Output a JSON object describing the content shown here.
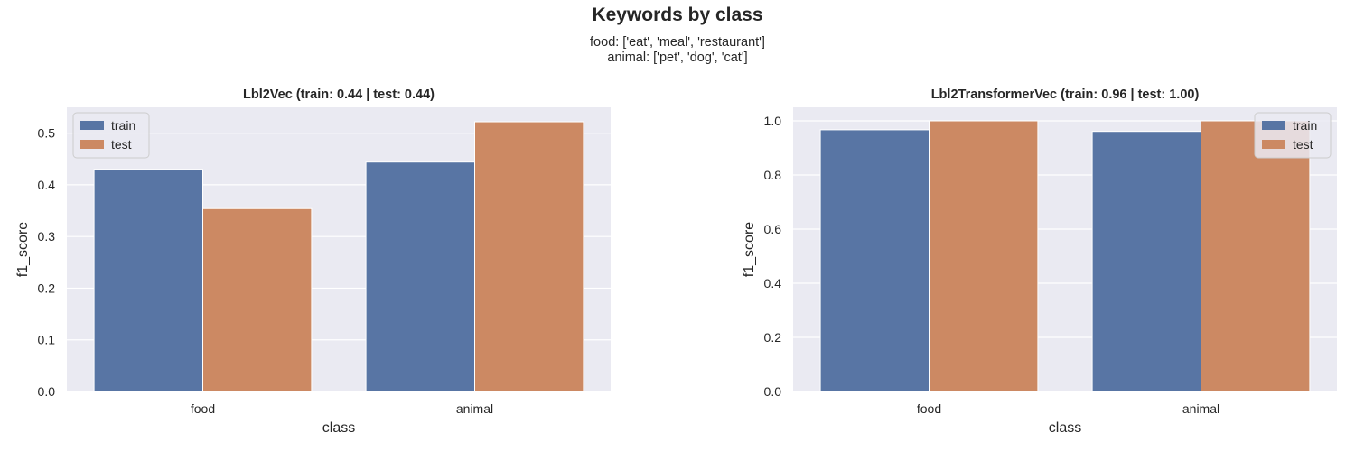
{
  "figure": {
    "title": "Keywords by class",
    "subtitle_lines": [
      "food: ['eat', 'meal', 'restaurant']",
      "animal: ['pet', 'dog', 'cat']"
    ]
  },
  "chart_data": [
    {
      "type": "bar",
      "title": "Lbl2Vec (train: 0.44 | test: 0.44)",
      "xlabel": "class",
      "ylabel": "f1_score",
      "categories": [
        "food",
        "animal"
      ],
      "series": [
        {
          "name": "train",
          "values": [
            0.43,
            0.444
          ],
          "color": "#5875a4"
        },
        {
          "name": "test",
          "values": [
            0.354,
            0.522
          ],
          "color": "#cc8963"
        }
      ],
      "ylim": [
        0,
        0.55
      ],
      "yticks": [
        0.0,
        0.1,
        0.2,
        0.3,
        0.4,
        0.5
      ],
      "ytick_labels": [
        "0.0",
        "0.1",
        "0.2",
        "0.3",
        "0.4",
        "0.5"
      ],
      "legend": "upper-left",
      "grid": true,
      "background": "#eaeaf2"
    },
    {
      "type": "bar",
      "title": "Lbl2TransformerVec (train: 0.96 | test: 1.00)",
      "xlabel": "class",
      "ylabel": "f1_score",
      "categories": [
        "food",
        "animal"
      ],
      "series": [
        {
          "name": "train",
          "values": [
            0.967,
            0.961
          ],
          "color": "#5875a4"
        },
        {
          "name": "test",
          "values": [
            1.0,
            1.0
          ],
          "color": "#cc8963"
        }
      ],
      "ylim": [
        0,
        1.05
      ],
      "yticks": [
        0.0,
        0.2,
        0.4,
        0.6,
        0.8,
        1.0
      ],
      "ytick_labels": [
        "0.0",
        "0.2",
        "0.4",
        "0.6",
        "0.8",
        "1.0"
      ],
      "legend": "upper-right",
      "grid": true,
      "background": "#eaeaf2"
    }
  ]
}
